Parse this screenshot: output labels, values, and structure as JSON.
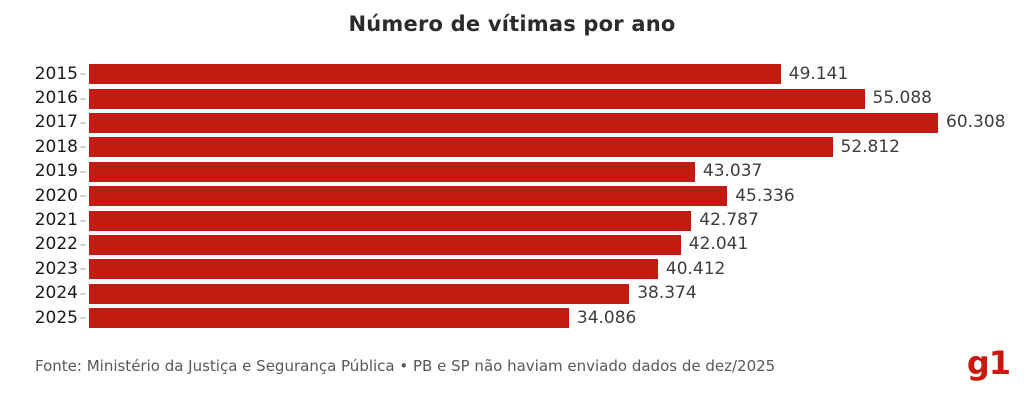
{
  "title": "Número de vítimas por ano",
  "footer": {
    "source": "Fonte: Ministério da Justiça e Segurança Pública • PB e SP não haviam enviado dados de dez/2025",
    "logo_text": "g1"
  },
  "colors": {
    "bar": "#c21b12",
    "logo": "#cb170c",
    "title_text": "#2b2b2b",
    "year_label_text": "#1a1a1a",
    "value_label_text": "#3d3d3d",
    "source_text": "#58585a"
  },
  "chart_data": {
    "type": "bar",
    "orientation": "horizontal",
    "title": "Número de vítimas por ano",
    "xlabel": "",
    "ylabel": "",
    "xlim": [
      0,
      60308
    ],
    "grid": false,
    "legend": false,
    "categories": [
      "2015",
      "2016",
      "2017",
      "2018",
      "2019",
      "2020",
      "2021",
      "2022",
      "2023",
      "2024",
      "2025"
    ],
    "values": [
      49141,
      55088,
      60308,
      52812,
      43037,
      45336,
      42787,
      42041,
      40412,
      38374,
      34086
    ],
    "value_labels": [
      "49.141",
      "55.088",
      "60.308",
      "52.812",
      "43.037",
      "45.336",
      "42.787",
      "42.041",
      "40.412",
      "38.374",
      "34.086"
    ]
  }
}
